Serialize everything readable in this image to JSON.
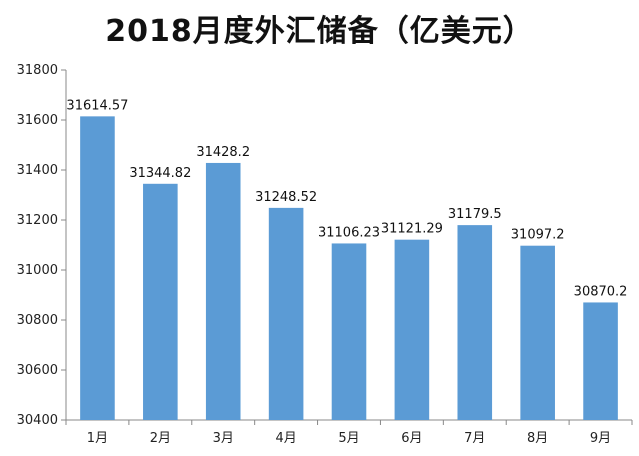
{
  "chart_data": {
    "type": "bar",
    "title": "2018月度外汇储备（亿美元）",
    "categories": [
      "1月",
      "2月",
      "3月",
      "4月",
      "5月",
      "6月",
      "7月",
      "8月",
      "9月"
    ],
    "values": [
      31614.57,
      31344.82,
      31428.2,
      31248.52,
      31106.23,
      31121.29,
      31179.5,
      31097.2,
      30870.2
    ],
    "data_labels": [
      "31614.57",
      "31344.82",
      "31428.2",
      "31248.52",
      "31106.23",
      "31121.29",
      "31179.5",
      "31097.2",
      "30870.2"
    ],
    "ylim": [
      30400,
      31800
    ],
    "yticks": [
      30400,
      30600,
      30800,
      31000,
      31200,
      31400,
      31600,
      31800
    ],
    "bar_color": "#5b9bd5",
    "grid": false,
    "legend": "none"
  }
}
